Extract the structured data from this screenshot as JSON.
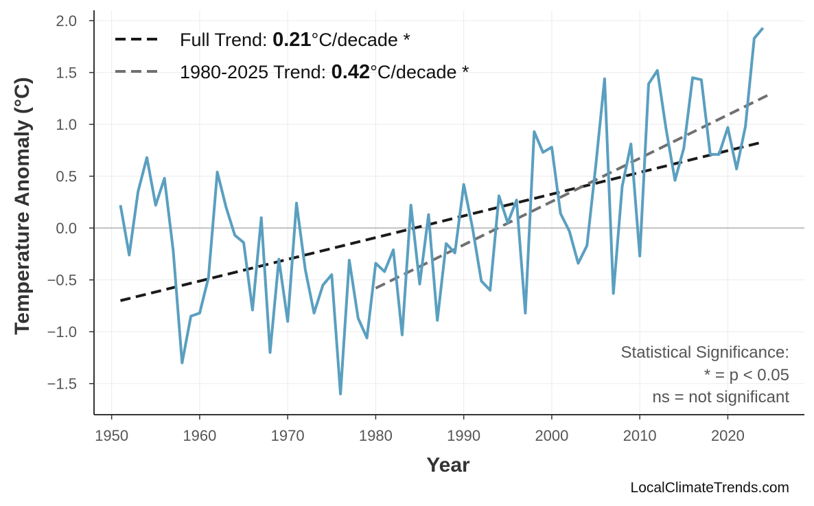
{
  "chart_data": {
    "type": "line",
    "xlabel": "Year",
    "ylabel": "Temperature Anomaly (°C)",
    "xlim": [
      1948,
      2028.7
    ],
    "ylim": [
      -1.8,
      2.1
    ],
    "xticks": [
      1950,
      1960,
      1970,
      1980,
      1990,
      2000,
      2010,
      2020
    ],
    "yticks": [
      -1.5,
      -1.0,
      -0.5,
      0.0,
      0.5,
      1.0,
      1.5,
      2.0
    ],
    "ytick_labels": [
      "−1.5",
      "−1.0",
      "−0.5",
      "0.0",
      "0.5",
      "1.0",
      "1.5",
      "2.0"
    ],
    "grid": true,
    "legend_position": "top-left",
    "series": [
      {
        "color": "#5a9fc0",
        "x": [
          1951,
          1952,
          1953,
          1954,
          1955,
          1956,
          1957,
          1958,
          1959,
          1960,
          1961,
          1962,
          1963,
          1964,
          1965,
          1966,
          1967,
          1968,
          1969,
          1970,
          1971,
          1972,
          1973,
          1974,
          1975,
          1976,
          1977,
          1978,
          1979,
          1980,
          1981,
          1982,
          1983,
          1984,
          1985,
          1986,
          1987,
          1988,
          1989,
          1990,
          1991,
          1992,
          1993,
          1994,
          1995,
          1996,
          1997,
          1998,
          1999,
          2000,
          2001,
          2002,
          2003,
          2004,
          2005,
          2006,
          2007,
          2008,
          2009,
          2010,
          2011,
          2012,
          2013,
          2014,
          2015,
          2016,
          2017,
          2018,
          2019,
          2020,
          2021,
          2022,
          2023,
          2024
        ],
        "y": [
          0.22,
          -0.26,
          0.35,
          0.68,
          0.22,
          0.48,
          -0.22,
          -1.3,
          -0.85,
          -0.82,
          -0.48,
          0.54,
          0.2,
          -0.07,
          -0.14,
          -0.79,
          0.1,
          -1.2,
          -0.3,
          -0.9,
          0.24,
          -0.4,
          -0.82,
          -0.55,
          -0.45,
          -1.6,
          -0.31,
          -0.87,
          -1.06,
          -0.34,
          -0.42,
          -0.21,
          -1.03,
          0.22,
          -0.54,
          0.13,
          -0.89,
          -0.15,
          -0.24,
          0.42,
          0.0,
          -0.51,
          -0.6,
          0.31,
          0.05,
          0.27,
          -0.82,
          0.93,
          0.73,
          0.78,
          0.14,
          -0.03,
          -0.34,
          -0.17,
          0.6,
          1.44,
          -0.63,
          0.4,
          0.81,
          -0.27,
          1.39,
          1.52,
          0.95,
          0.46,
          0.77,
          1.45,
          1.43,
          0.71,
          0.71,
          0.97,
          0.57,
          0.98,
          1.83,
          1.93
        ]
      }
    ],
    "trends": [
      {
        "label_prefix": "Full Trend: ",
        "value": "0.21",
        "label_suffix": "°C/decade *",
        "color": "#1a1a1a",
        "x": [
          1951,
          2024
        ],
        "y": [
          -0.7,
          0.83
        ]
      },
      {
        "label_prefix": "1980-2025 Trend: ",
        "value": "0.42",
        "label_suffix": "°C/decade *",
        "color": "#707070",
        "x": [
          1980,
          2025
        ],
        "y": [
          -0.58,
          1.3
        ]
      }
    ],
    "annotation": [
      "Statistical Significance:",
      "* = p < 0.05",
      "ns = not significant"
    ],
    "zero_line": true
  },
  "footer": "LocalClimateTrends.com"
}
